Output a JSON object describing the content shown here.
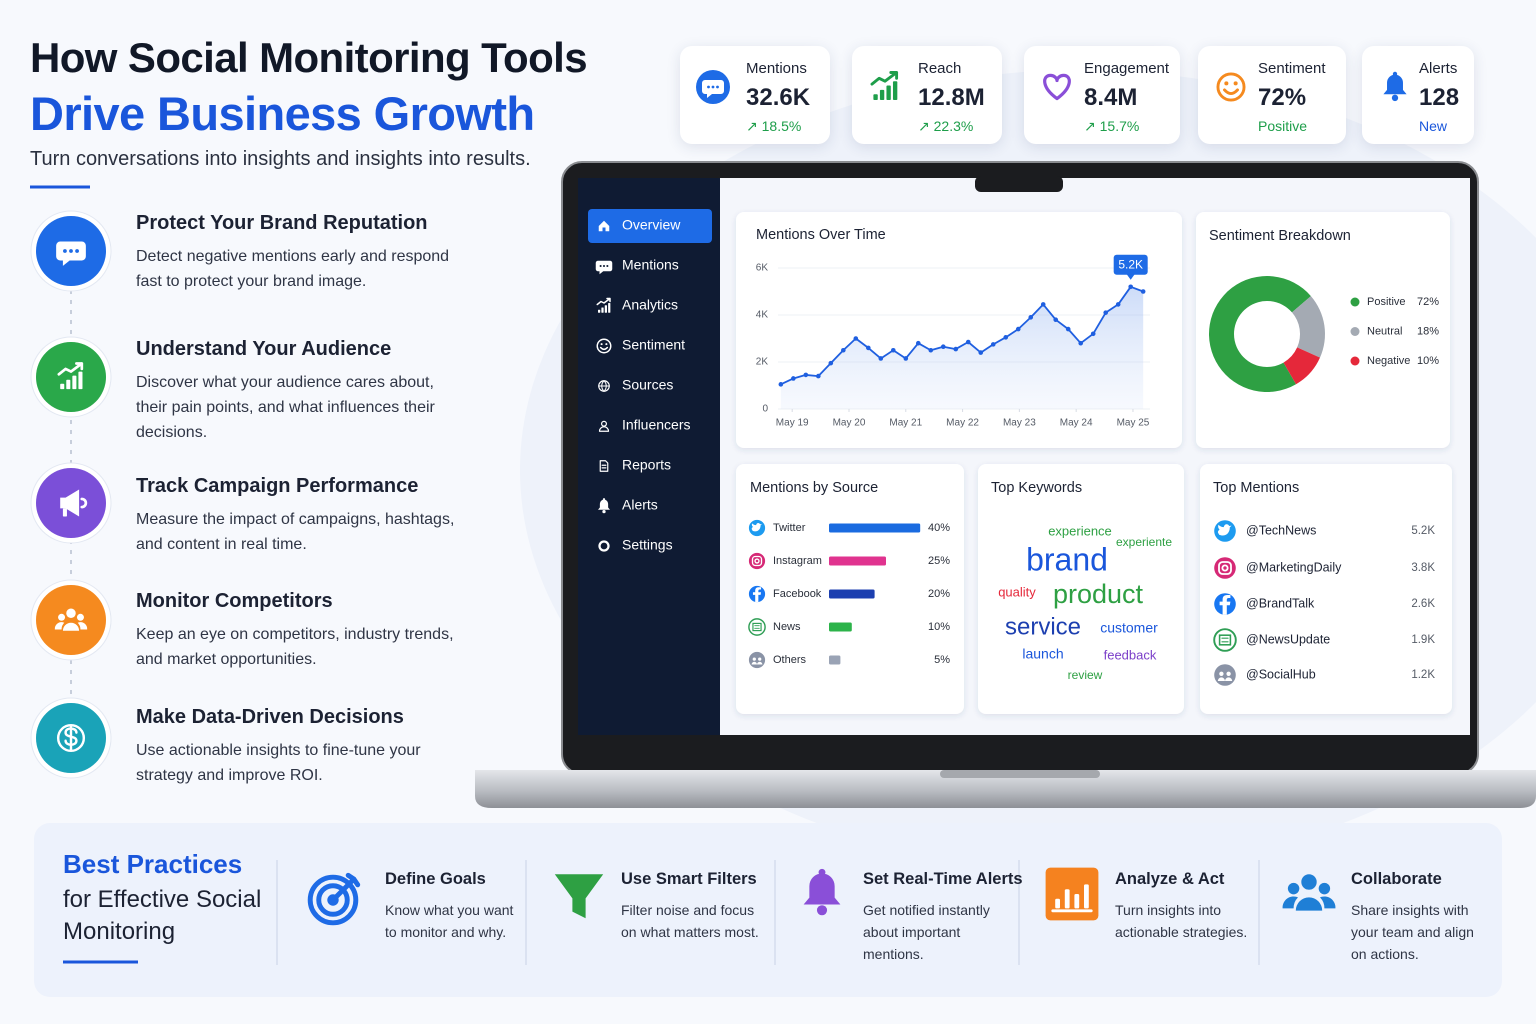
{
  "header": {
    "title_line1": "How Social Monitoring Tools",
    "title_line2": "Drive Business Growth",
    "subtitle": "Turn conversations into insights and insights into results."
  },
  "benefits": [
    {
      "title": "Protect Your Brand Reputation",
      "description": "Detect negative mentions early and respond fast to protect your brand image."
    },
    {
      "title": "Understand Your Audience",
      "description": "Discover what your audience cares about, their pain points, and what influences their decisions."
    },
    {
      "title": "Track Campaign Performance",
      "description": "Measure the impact of campaigns, hashtags, and content in real time."
    },
    {
      "title": "Monitor Competitors",
      "description": "Keep an eye on competitors, industry trends, and market opportunities."
    },
    {
      "title": "Make Data-Driven Decisions",
      "description": "Use actionable insights to fine-tune your strategy and improve ROI."
    }
  ],
  "kpis": [
    {
      "label": "Mentions",
      "value": "32.6K",
      "change": "↗ 18.5%"
    },
    {
      "label": "Reach",
      "value": "12.8M",
      "change": "↗ 22.3%"
    },
    {
      "label": "Engagement",
      "value": "8.4M",
      "change": "↗ 15.7%"
    },
    {
      "label": "Sentiment",
      "value": "72%",
      "change": "Positive"
    },
    {
      "label": "Alerts",
      "value": "128",
      "change": "New"
    }
  ],
  "dashboard": {
    "nav": [
      "Overview",
      "Mentions",
      "Analytics",
      "Sentiment",
      "Sources",
      "Influencers",
      "Reports",
      "Alerts",
      "Settings"
    ],
    "mentions_chart": {
      "type": "line",
      "title": "Mentions Over Time",
      "color": "#1f5fe0",
      "x": [
        -0.2,
        0.02,
        0.24,
        0.46,
        0.68,
        0.9,
        1.12,
        1.34,
        1.56,
        1.78,
        2.0,
        2.22,
        2.44,
        2.66,
        2.88,
        3.1,
        3.32,
        3.54,
        3.76,
        3.98,
        4.2,
        4.42,
        4.64,
        4.86,
        5.08,
        5.3,
        5.52,
        5.74,
        5.96,
        6.18
      ],
      "values": [
        1050,
        1300,
        1450,
        1400,
        1950,
        2500,
        3000,
        2600,
        2150,
        2500,
        2150,
        2800,
        2500,
        2650,
        2550,
        2850,
        2400,
        2750,
        3050,
        3400,
        3900,
        4450,
        3800,
        3400,
        2800,
        3200,
        4100,
        4450,
        5200,
        5000
      ],
      "xlim": [
        -0.25,
        6.3
      ],
      "xticks": [
        {
          "value": 0,
          "label": "May 19"
        },
        {
          "value": 1,
          "label": "May 20"
        },
        {
          "value": 2,
          "label": "May 21"
        },
        {
          "value": 3,
          "label": "May 22"
        },
        {
          "value": 4,
          "label": "May 23"
        },
        {
          "value": 5,
          "label": "May 24"
        },
        {
          "value": 6,
          "label": "May 25"
        }
      ],
      "ylim": [
        0,
        6000
      ],
      "yticks": [
        0,
        {
          "value": 2000,
          "label": "2K"
        },
        {
          "value": 4000,
          "label": "4K"
        },
        {
          "value": 6000,
          "label": "6K"
        }
      ],
      "annotation": "5.2K"
    },
    "sentiment_chart": {
      "type": "pie",
      "title": "Sentiment Breakdown",
      "categories": [
        "Positive",
        "Neutral",
        "Negative"
      ],
      "values": [
        72,
        18,
        10
      ],
      "value_labels": [
        "72%",
        "18%",
        "10%"
      ],
      "colors": [
        "#2ea043",
        "#a4aab3",
        "#e5283a"
      ]
    },
    "sources_chart": {
      "type": "bar",
      "title": "Mentions by Source",
      "categories": [
        "Twitter",
        "Instagram",
        "Facebook",
        "News",
        "Others"
      ],
      "values": [
        40,
        25,
        20,
        10,
        5
      ],
      "value_labels": [
        "40%",
        "25%",
        "20%",
        "10%",
        "5%"
      ],
      "colors": [
        "#1a6be0",
        "#e0338f",
        "#1c3fb0",
        "#2cb34a",
        "#9aa3b5"
      ]
    },
    "keywords": {
      "title": "Top Keywords",
      "words": [
        "experience",
        "experiente",
        "brand",
        "quality",
        "product",
        "service",
        "customer",
        "launch",
        "feedback",
        "review"
      ]
    },
    "top_mentions": {
      "title": "Top Mentions",
      "rows": [
        {
          "handle": "@TechNews",
          "count": "5.2K"
        },
        {
          "handle": "@MarketingDaily",
          "count": "3.8K"
        },
        {
          "handle": "@BrandTalk",
          "count": "2.6K"
        },
        {
          "handle": "@NewsUpdate",
          "count": "1.9K"
        },
        {
          "handle": "@SocialHub",
          "count": "1.2K"
        }
      ]
    }
  },
  "best_practices": {
    "title": "Best Practices",
    "subtitle": "for Effective Social Monitoring",
    "items": [
      {
        "title": "Define Goals",
        "description": "Know what you want to monitor and why."
      },
      {
        "title": "Use Smart Filters",
        "description": "Filter noise and focus on what matters most."
      },
      {
        "title": "Set Real-Time Alerts",
        "description": "Get notified instantly about important mentions."
      },
      {
        "title": "Analyze & Act",
        "description": "Turn insights into actionable strategies."
      },
      {
        "title": "Collaborate",
        "description": "Share insights with your team and align on actions."
      }
    ]
  }
}
